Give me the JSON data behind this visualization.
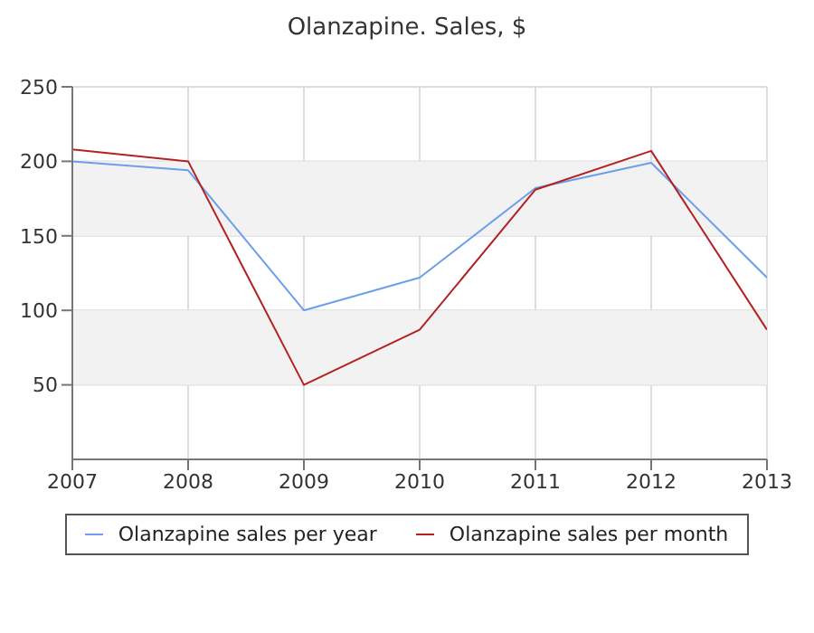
{
  "chart_data": {
    "type": "line",
    "title": "Olanzapine. Sales, $",
    "x": [
      2007,
      2008,
      2009,
      2010,
      2011,
      2012,
      2013
    ],
    "series": [
      {
        "name": "Olanzapine sales per year",
        "color": "#6d9eeb",
        "values": [
          200,
          194,
          100,
          122,
          182,
          199,
          122
        ]
      },
      {
        "name": "Olanzapine sales per month",
        "color": "#b22222",
        "values": [
          208,
          200,
          50,
          87,
          181,
          207,
          87
        ]
      }
    ],
    "xlim": [
      2007,
      2013
    ],
    "xticks": [
      2007,
      2008,
      2009,
      2010,
      2011,
      2012,
      2013
    ],
    "ylim": [
      0,
      250
    ],
    "yticks": [
      50,
      100,
      150,
      200,
      250
    ],
    "bands": [
      {
        "axis": "y",
        "from": 50,
        "to": 100,
        "color": "#f2f2f2"
      },
      {
        "axis": "y",
        "from": 150,
        "to": 200,
        "color": "#f2f2f2"
      }
    ],
    "grid": true,
    "legend": "bottom",
    "marker": "none",
    "line_style": "solid"
  }
}
